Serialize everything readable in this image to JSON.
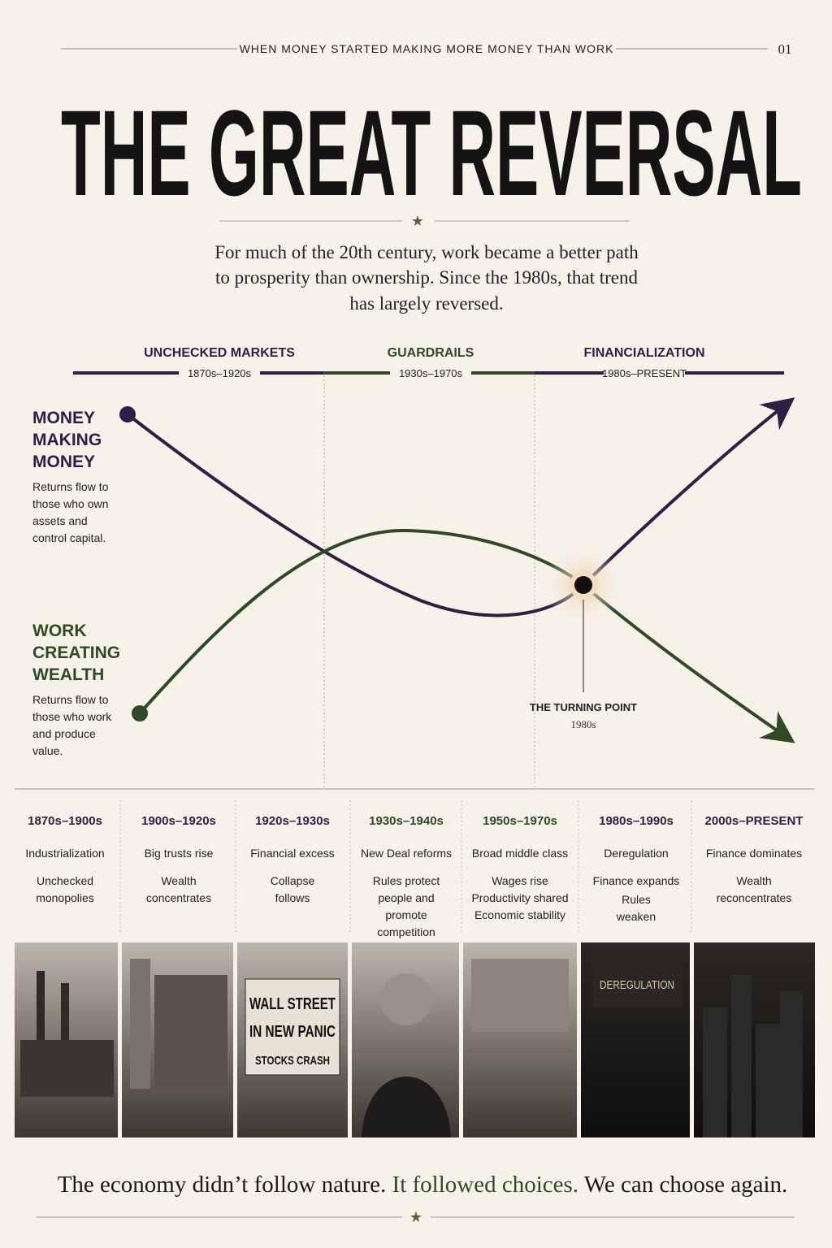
{
  "header": {
    "kicker": "WHEN MONEY STARTED MAKING MORE MONEY THAN WORK",
    "page": "01",
    "title": "THE GREAT REVERSAL"
  },
  "intro": [
    "For much of the 20th century, work became a better path",
    "to prosperity than ownership. Since the 1980s, that trend",
    "has largely reversed."
  ],
  "eras": [
    {
      "name": "UNCHECKED MARKETS",
      "period": "1870s–1920s"
    },
    {
      "name": "GUARDRAILS",
      "period": "1930s–1970s"
    },
    {
      "name": "FINANCIALIZATION",
      "period": "1980s–PRESENT"
    }
  ],
  "lines": [
    {
      "label": [
        "MONEY",
        "MAKING",
        "MONEY"
      ],
      "description": [
        "Returns flow to",
        "those who own",
        "assets and",
        "control capital."
      ]
    },
    {
      "label": [
        "WORK",
        "CREATING",
        "WEALTH"
      ],
      "description": [
        "Returns flow to",
        "those who work",
        "and produce",
        "value."
      ]
    }
  ],
  "turning_point": {
    "label": "THE TURNING POINT",
    "period": "1980s"
  },
  "timeline": [
    {
      "period": "1870s–1900s",
      "items": [
        [
          "Industrialization"
        ],
        [
          "Unchecked",
          "monopolies"
        ]
      ]
    },
    {
      "period": "1900s–1920s",
      "items": [
        [
          "Big trusts rise"
        ],
        [
          "Wealth",
          "concentrates"
        ]
      ]
    },
    {
      "period": "1920s–1930s",
      "items": [
        [
          "Financial excess"
        ],
        [
          "Collapse",
          "follows"
        ]
      ]
    },
    {
      "period": "1930s–1940s",
      "items": [
        [
          "New Deal reforms"
        ],
        [
          "Rules protect",
          "people and",
          "promote",
          "competition"
        ]
      ]
    },
    {
      "period": "1950s–1970s",
      "items": [
        [
          "Broad middle class"
        ],
        [
          "Wages rise",
          "Productivity shared",
          "Economic stability"
        ]
      ]
    },
    {
      "period": "1980s–1990s",
      "items": [
        [
          "Deregulation"
        ],
        [
          "Finance expands"
        ],
        [
          "Rules",
          "weaken"
        ]
      ]
    },
    {
      "period": "2000s–PRESENT",
      "items": [
        [
          "Finance dominates"
        ],
        [
          "Wealth",
          "reconcentrates"
        ]
      ]
    }
  ],
  "photos": {
    "newspaper": [
      "WALL STREET",
      "IN NEW PANIC",
      "STOCKS CRASH"
    ],
    "sign": "DEREGULATION"
  },
  "footer": [
    "The economy didn’t follow nature.",
    "It followed choices.",
    "We can choose again."
  ]
}
